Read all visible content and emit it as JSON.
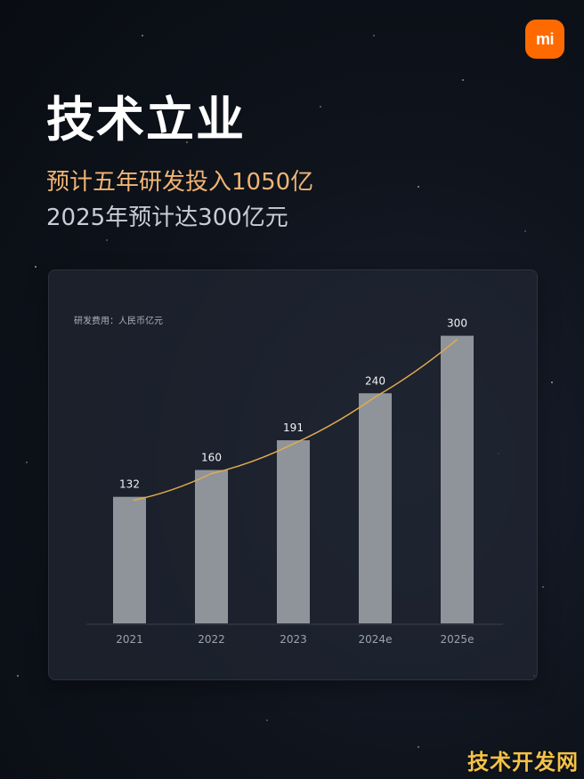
{
  "header": {
    "title": "技术立业",
    "subtitle_1": "预计五年研发投入1050亿",
    "subtitle_2": "2025年预计达300亿元"
  },
  "brand": {
    "logo_text": "mi",
    "logo_color": "#ff6a00",
    "watermark": "技术开发网"
  },
  "colors": {
    "bar": "#8f949b",
    "line": "#e0ad4c"
  },
  "chart_data": {
    "type": "bar",
    "unit_label": "研发费用：人民币亿元",
    "categories": [
      "2021",
      "2022",
      "2023",
      "2024e",
      "2025e"
    ],
    "values": [
      132,
      160,
      191,
      240,
      300
    ],
    "data_labels": [
      "132",
      "160",
      "191",
      "240",
      "300"
    ],
    "trend_line": true,
    "ylim": [
      0,
      320
    ],
    "grid": false
  }
}
